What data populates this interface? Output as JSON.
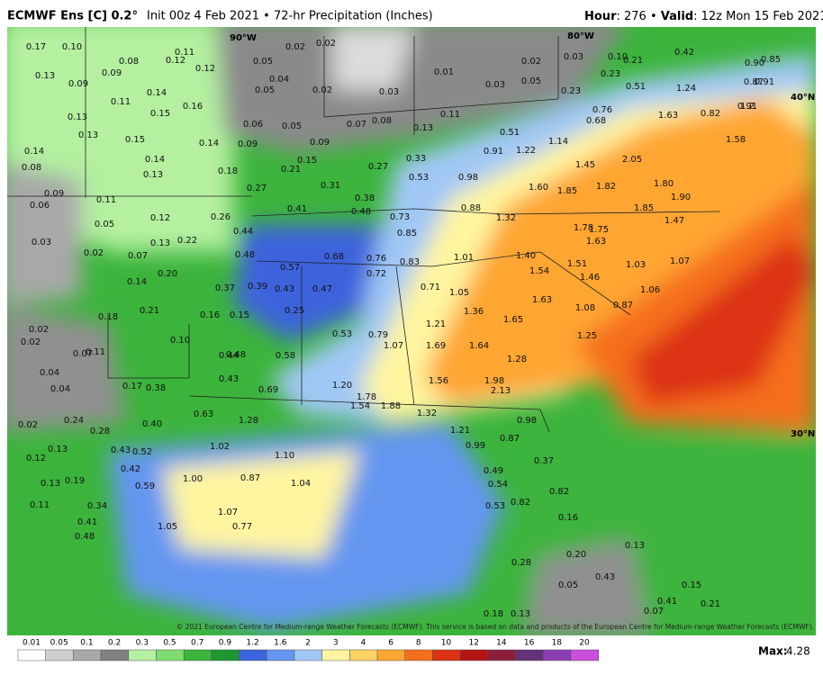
{
  "header": {
    "model": "ECMWF Ens [C] 0.2°",
    "info": "Init 00z 4 Feb 2021 • 72-hr Precipitation (Inches)",
    "hour_label": "Hour",
    "hour": ": 276 • ",
    "valid_label": "Valid",
    "valid": ": 12z Mon 15 Feb 2021"
  },
  "map": {
    "grid_labels": [
      "90°W",
      "80°W",
      "40°N",
      "30°N"
    ],
    "copyright": "© 2021 European Centre for Medium-range Weather Forecasts (ECMWF). This service is based on data and products of the European Centre for Medium-range Weather Forecasts (ECMWF).",
    "labels": [
      "0.17",
      "0.10",
      "0.08",
      "0.11",
      "0.12",
      "0.12",
      "0.05",
      "0.02",
      "0.02",
      "0.04",
      "0.05",
      "0.02",
      "0.01",
      "0.03",
      "0.02",
      "0.03",
      "0.05",
      "0.03",
      "0.10",
      "0.21",
      "0.42",
      "0.23",
      "0.51",
      "1.24",
      "0.23",
      "0.13",
      "0.09",
      "0.09",
      "0.11",
      "0.14",
      "0.16",
      "0.15",
      "0.13",
      "0.13",
      "0.15",
      "0.14",
      "0.06",
      "0.05",
      "0.07",
      "0.08",
      "0.11",
      "0.13",
      "0.09",
      "0.09",
      "0.14",
      "0.08",
      "0.14",
      "0.13",
      "0.18",
      "0.21",
      "0.15",
      "0.27",
      "0.33",
      "0.53",
      "0.98",
      "0.91",
      "0.51",
      "1.22",
      "1.14",
      "0.68",
      "0.76",
      "1.63",
      "1.45",
      "2.05",
      "1.82",
      "1.85",
      "1.60",
      "1.80",
      "1.90",
      "0.82",
      "0.91",
      "1.58",
      "0.09",
      "0.06",
      "0.11",
      "0.05",
      "0.12",
      "0.03",
      "0.02",
      "0.07",
      "0.13",
      "0.22",
      "0.26",
      "0.27",
      "0.31",
      "0.38",
      "0.48",
      "0.41",
      "0.73",
      "0.88",
      "1.32",
      "0.85",
      "0.44",
      "0.48",
      "0.57",
      "0.68",
      "0.76",
      "0.83",
      "0.72",
      "1.01",
      "1.40",
      "1.51",
      "1.03",
      "1.78",
      "1.75",
      "1.63",
      "1.85",
      "1.47",
      "1.54",
      "1.46",
      "1.07",
      "1.06",
      "0.20",
      "0.14",
      "0.37",
      "0.39",
      "0.43",
      "0.47",
      "0.71",
      "1.05",
      "1.63",
      "1.36",
      "1.08",
      "0.87",
      "0.18",
      "0.21",
      "0.16",
      "0.15",
      "0.25",
      "1.65",
      "1.21",
      "0.02",
      "0.02",
      "0.53",
      "0.79",
      "1.07",
      "1.69",
      "1.64",
      "1.25",
      "0.11",
      "0.07",
      "0.10",
      "0.44",
      "0.48",
      "0.58",
      "1.28",
      "0.04",
      "0.04",
      "0.17",
      "0.38",
      "0.43",
      "0.69",
      "1.20",
      "1.56",
      "1.98",
      "2.13",
      "1.78",
      "1.54",
      "1.88",
      "1.32",
      "0.63",
      "1.28",
      "0.98",
      "0.24",
      "0.02",
      "0.28",
      "0.40",
      "1.21",
      "0.87",
      "0.13",
      "0.43",
      "0.52",
      "1.02",
      "1.10",
      "0.99",
      "0.12",
      "0.42",
      "0.37",
      "0.49",
      "0.13",
      "0.19",
      "0.59",
      "1.00",
      "0.87",
      "1.04",
      "0.54",
      "0.82",
      "0.11",
      "0.34",
      "0.82",
      "0.53",
      "1.07",
      "0.41",
      "0.16",
      "0.77",
      "1.05",
      "0.48",
      "0.13",
      "0.20",
      "0.28",
      "0.43",
      "0.05",
      "0.15",
      "0.41",
      "0.21",
      "0.07",
      "0.18",
      "0.13",
      "0.90",
      "0.85",
      "0.87",
      "0.91",
      "1.2"
    ]
  },
  "colorbar": {
    "labels": [
      "0.01",
      "0.05",
      "0.1",
      "0.2",
      "0.3",
      "0.5",
      "0.7",
      "0.9",
      "1.2",
      "1.6",
      "2",
      "3",
      "4",
      "6",
      "8",
      "10",
      "12",
      "14",
      "16",
      "18",
      "20"
    ],
    "colors": [
      "#ffffff",
      "#cfcfcf",
      "#a8a8a8",
      "#808080",
      "#b4f0a0",
      "#7fdc6e",
      "#3cb43c",
      "#1e9632",
      "#3c64dc",
      "#6496f0",
      "#a0c8f5",
      "#fff5a0",
      "#ffd264",
      "#ffa532",
      "#f56e1e",
      "#dc3214",
      "#b41414",
      "#8c1e3c",
      "#643278",
      "#8c3cb4",
      "#c850dc"
    ],
    "max_label": "Max:",
    "max": "4.28"
  }
}
